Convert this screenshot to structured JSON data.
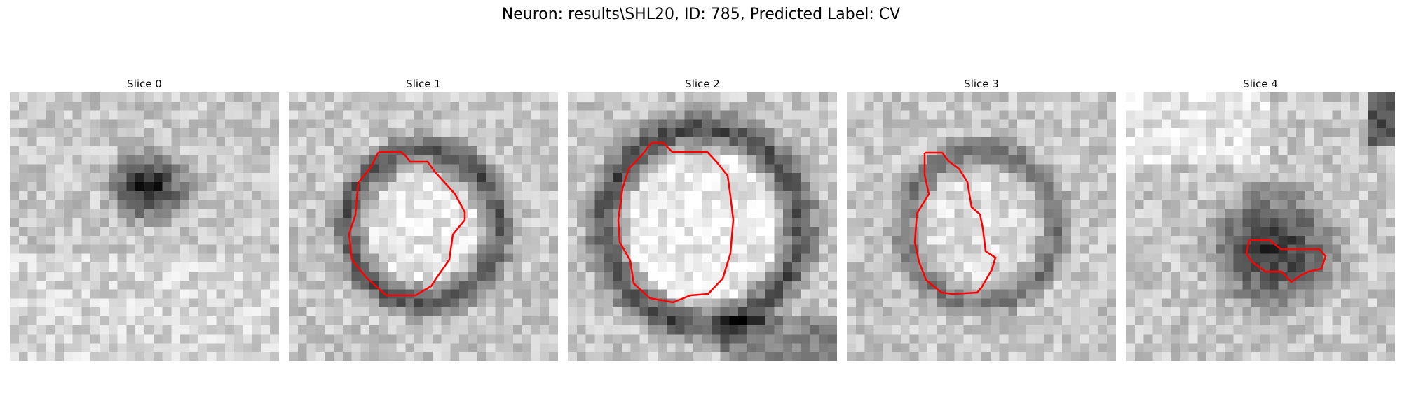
{
  "figure": {
    "title": "Neuron: results\\SHL20, ID: 785, Predicted Label: CV"
  },
  "slices": [
    {
      "title": "Slice 0",
      "feature": "dark-blob",
      "outline_color": "#ff0000",
      "has_outline": false
    },
    {
      "title": "Slice 1",
      "feature": "ring",
      "outline_color": "#ff0000",
      "has_outline": true
    },
    {
      "title": "Slice 2",
      "feature": "ring-large",
      "outline_color": "#ff0000",
      "has_outline": true
    },
    {
      "title": "Slice 3",
      "feature": "ring-faint",
      "outline_color": "#ff0000",
      "has_outline": true
    },
    {
      "title": "Slice 4",
      "feature": "dark-blob-large",
      "outline_color": "#ff0000",
      "has_outline": true
    }
  ]
}
